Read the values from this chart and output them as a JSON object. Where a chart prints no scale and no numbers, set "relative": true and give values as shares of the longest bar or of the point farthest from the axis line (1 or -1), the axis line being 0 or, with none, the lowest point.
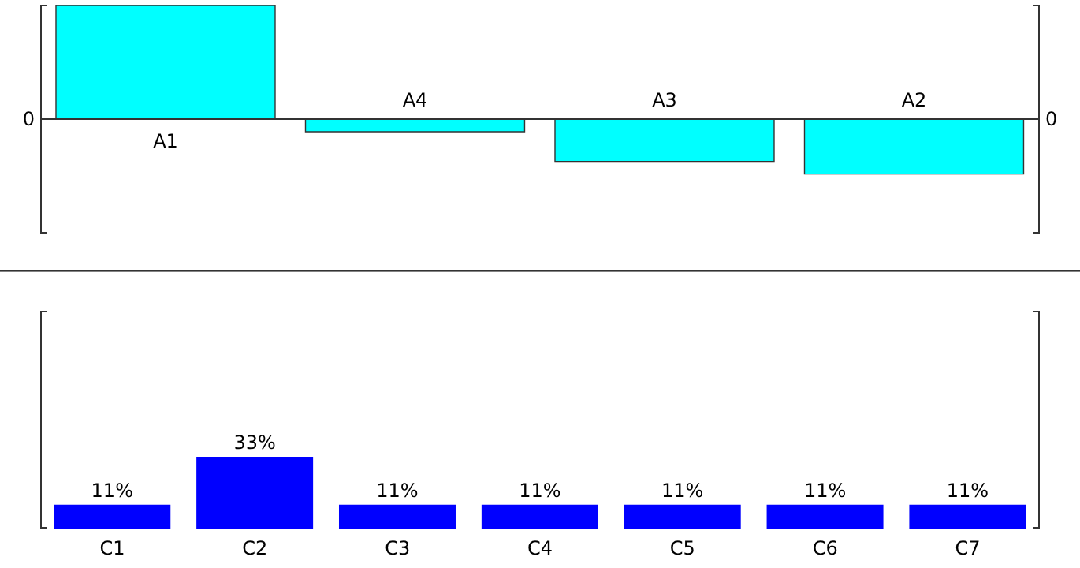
{
  "chart_data": [
    {
      "type": "bar",
      "relative": true,
      "categories": [
        "A1",
        "A4",
        "A3",
        "A2"
      ],
      "values": [
        1,
        -0.11,
        -0.37,
        -0.48
      ],
      "color": "#00ffff",
      "annotations": [
        "0",
        "0"
      ],
      "tick_labels": "x"
    },
    {
      "type": "bar",
      "categories": [
        "C1",
        "C2",
        "C3",
        "C4",
        "C5",
        "C6",
        "C7"
      ],
      "values": [
        11,
        33,
        11,
        11,
        11,
        11,
        11
      ],
      "color": "#0000ff",
      "ylim": [
        0,
        100
      ],
      "value_labels": [
        "11%",
        "33%",
        "11%",
        "11%",
        "11%",
        "11%",
        "11%"
      ],
      "tick_labels": "x"
    }
  ]
}
